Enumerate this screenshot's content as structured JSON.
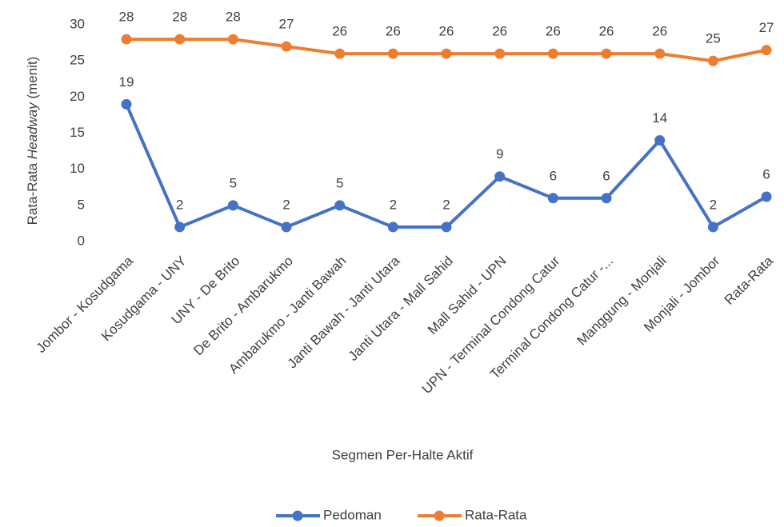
{
  "chart_data": {
    "type": "line",
    "y_label": [
      "Rata-Rata ",
      "Headway",
      " (menit)"
    ],
    "x_label": "Segmen Per-Halte Aktif",
    "categories": [
      "Jombor - Kosudgama",
      "Kosudgama - UNY",
      "UNY - De Brito",
      "De Brito - Ambarukmo",
      "Ambarukmo - Janti Bawah",
      "Janti Bawah - Janti Utara",
      "Janti Utara - Mall Sahid",
      "Mall Sahid - UPN",
      "UPN - Terminal Condong Catur",
      "Terminal Condong Catur -...",
      "Manggung - Monjali",
      "Monjali - Jombor",
      "Rata-Rata"
    ],
    "series": [
      {
        "name": "Pedoman",
        "color": "#4472c4",
        "values": [
          19,
          2,
          5,
          2,
          5,
          2,
          2,
          9,
          6,
          6,
          14,
          2,
          6.2
        ],
        "value_labels": [
          "19",
          "2",
          "5",
          "2",
          "5",
          "2",
          "2",
          "9",
          "6",
          "6",
          "14",
          "2",
          "6"
        ]
      },
      {
        "name": "Rata-Rata",
        "color": "#ed7d31",
        "values": [
          28,
          28,
          28,
          27,
          26,
          26,
          26,
          26,
          26,
          26,
          26,
          25,
          26.5
        ],
        "value_labels": [
          "28",
          "28",
          "28",
          "27",
          "26",
          "26",
          "26",
          "26",
          "26",
          "26",
          "26",
          "25",
          "27"
        ]
      }
    ],
    "ylim": [
      0,
      30
    ],
    "yticks": [
      0,
      5,
      10,
      15,
      20,
      25,
      30
    ],
    "grid": false,
    "legend": "bottom"
  }
}
